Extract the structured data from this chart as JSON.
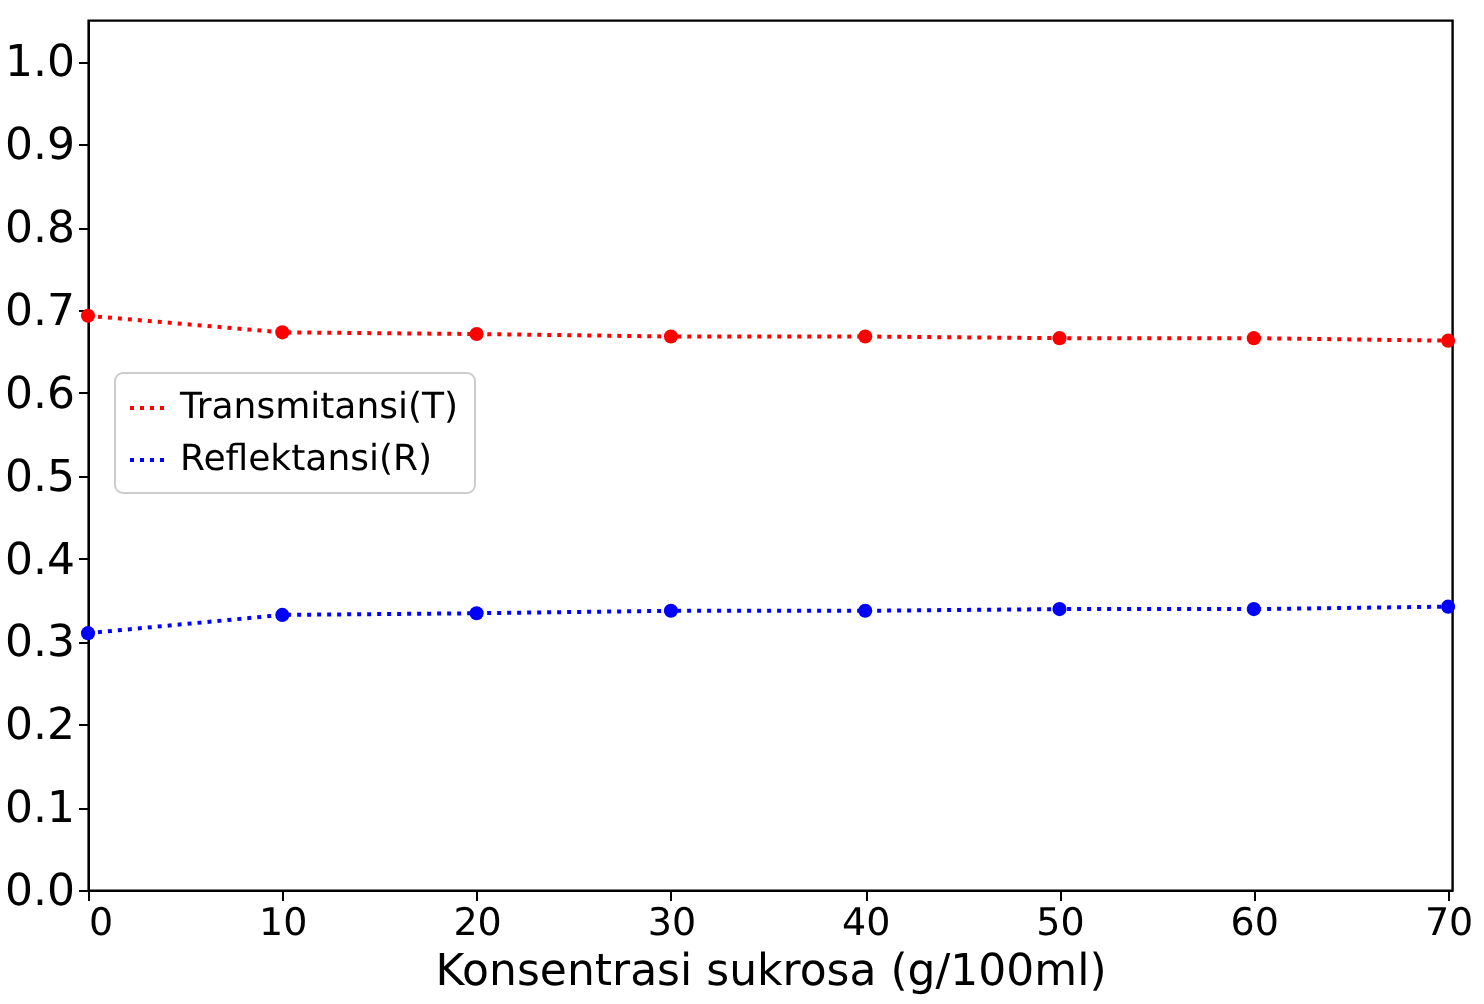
{
  "chart_data": {
    "type": "line",
    "xlabel": "Konsentrasi sukrosa (g/100ml)",
    "x": [
      0,
      10,
      20,
      30,
      40,
      50,
      60,
      70
    ],
    "series": [
      {
        "name": "Transmitansi(T)",
        "color": "#ff0000",
        "values": [
          0.693,
          0.673,
          0.671,
          0.668,
          0.668,
          0.666,
          0.666,
          0.663
        ]
      },
      {
        "name": "Reflektansi(R)",
        "color": "#0000ff",
        "values": [
          0.31,
          0.332,
          0.334,
          0.337,
          0.337,
          0.339,
          0.339,
          0.342
        ]
      }
    ],
    "xlim": [
      0,
      70.2
    ],
    "xticks": [
      0,
      10,
      20,
      30,
      40,
      50,
      60,
      70
    ],
    "ylim": [
      0,
      1.05
    ],
    "yticks": [
      {
        "value": 0,
        "label": "0.0"
      },
      {
        "value": 0.1,
        "label": "0.1"
      },
      {
        "value": 0.2,
        "label": "0.2"
      },
      {
        "value": 0.3,
        "label": "0.3"
      },
      {
        "value": 0.4,
        "label": "0.4"
      },
      {
        "value": 0.5,
        "label": "0.5"
      },
      {
        "value": 0.6,
        "label": "0.6"
      },
      {
        "value": 0.7,
        "label": "0.7"
      },
      {
        "value": 0.8,
        "label": "0.8"
      },
      {
        "value": 0.9,
        "label": "0.9"
      },
      {
        "value": 1,
        "label": "1.0"
      }
    ],
    "legend": "left",
    "marker": "circle",
    "line_style": "dotted",
    "grid": false
  }
}
